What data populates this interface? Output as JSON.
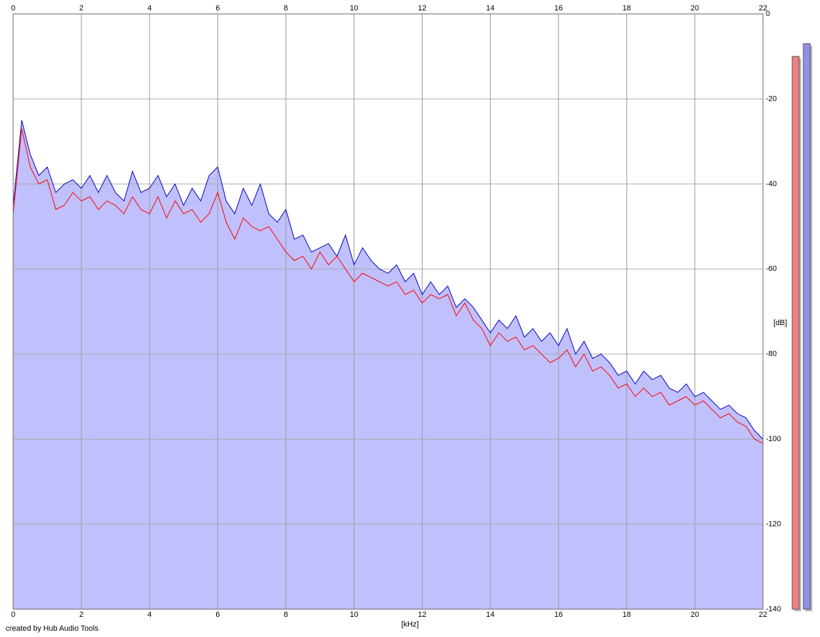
{
  "chart_data": {
    "type": "spectrum",
    "x": [
      0,
      0.25,
      0.5,
      0.75,
      1,
      1.25,
      1.5,
      1.75,
      2,
      2.25,
      2.5,
      2.75,
      3,
      3.25,
      3.5,
      3.75,
      4,
      4.25,
      4.5,
      4.75,
      5,
      5.25,
      5.5,
      5.75,
      6,
      6.25,
      6.5,
      6.75,
      7,
      7.25,
      7.5,
      7.75,
      8,
      8.25,
      8.5,
      8.75,
      9,
      9.25,
      9.5,
      9.75,
      10,
      10.25,
      10.5,
      10.75,
      11,
      11.25,
      11.5,
      11.75,
      12,
      12.25,
      12.5,
      12.75,
      13,
      13.25,
      13.5,
      13.75,
      14,
      14.25,
      14.5,
      14.75,
      15,
      15.25,
      15.5,
      15.75,
      16,
      16.25,
      16.5,
      16.75,
      17,
      17.25,
      17.5,
      17.75,
      18,
      18.25,
      18.5,
      18.75,
      19,
      19.25,
      19.5,
      19.75,
      20,
      20.25,
      20.5,
      20.75,
      21,
      21.25,
      21.5,
      21.75,
      22
    ],
    "series": [
      {
        "color": "#0000c0",
        "fill": "#c0c0fc",
        "values": [
          -45,
          -25,
          -33,
          -38,
          -36,
          -42,
          -40,
          -39,
          -41,
          -38,
          -42,
          -38,
          -42,
          -44,
          -37,
          -42,
          -41,
          -38,
          -43,
          -40,
          -45,
          -41,
          -44,
          -38,
          -36,
          -44,
          -47,
          -41,
          -45,
          -40,
          -47,
          -49,
          -46,
          -53,
          -52,
          -56,
          -55,
          -54,
          -57,
          -52,
          -59,
          -55,
          -58,
          -60,
          -61,
          -59,
          -63,
          -61,
          -66,
          -63,
          -66,
          -64,
          -69,
          -67,
          -69,
          -72,
          -75,
          -72,
          -74,
          -71,
          -76,
          -74,
          -77,
          -75,
          -78,
          -74,
          -80,
          -77,
          -81,
          -80,
          -82,
          -85,
          -84,
          -87,
          -84,
          -86,
          -85,
          -88,
          -89,
          -87,
          -90,
          -89,
          -91,
          -93,
          -92,
          -94,
          -95,
          -98,
          -100
        ]
      },
      {
        "color": "#ff0000",
        "values": [
          -47,
          -27,
          -36,
          -40,
          -39,
          -46,
          -45,
          -42,
          -44,
          -43,
          -46,
          -44,
          -45,
          -47,
          -43,
          -46,
          -47,
          -43,
          -48,
          -44,
          -47,
          -46,
          -49,
          -47,
          -42,
          -49,
          -53,
          -48,
          -50,
          -51,
          -50,
          -53,
          -56,
          -58,
          -57,
          -60,
          -56,
          -59,
          -57,
          -60,
          -63,
          -61,
          -62,
          -63,
          -64,
          -63,
          -66,
          -65,
          -68,
          -66,
          -67,
          -66,
          -71,
          -68,
          -72,
          -74,
          -78,
          -75,
          -77,
          -76,
          -79,
          -78,
          -80,
          -82,
          -81,
          -79,
          -83,
          -80,
          -84,
          -83,
          -85,
          -88,
          -87,
          -90,
          -88,
          -90,
          -89,
          -92,
          -91,
          -90,
          -92,
          -91,
          -93,
          -95,
          -94,
          -96,
          -97,
          -100,
          -101
        ]
      }
    ],
    "meters": [
      {
        "color": "#f08080",
        "value": -10
      },
      {
        "color": "#9090e8",
        "value": -7
      }
    ],
    "xlim": [
      0,
      22
    ],
    "xticks": [
      0,
      2,
      4,
      6,
      8,
      10,
      12,
      14,
      16,
      18,
      20,
      22
    ],
    "ylim": [
      -140,
      0
    ],
    "yticks": [
      0,
      -20,
      -40,
      -60,
      -80,
      -100,
      -120,
      -140
    ],
    "xlabel": "[kHz]",
    "ylabel": "[dB]",
    "footer": "created by Hub Audio Tools",
    "grid": true
  }
}
